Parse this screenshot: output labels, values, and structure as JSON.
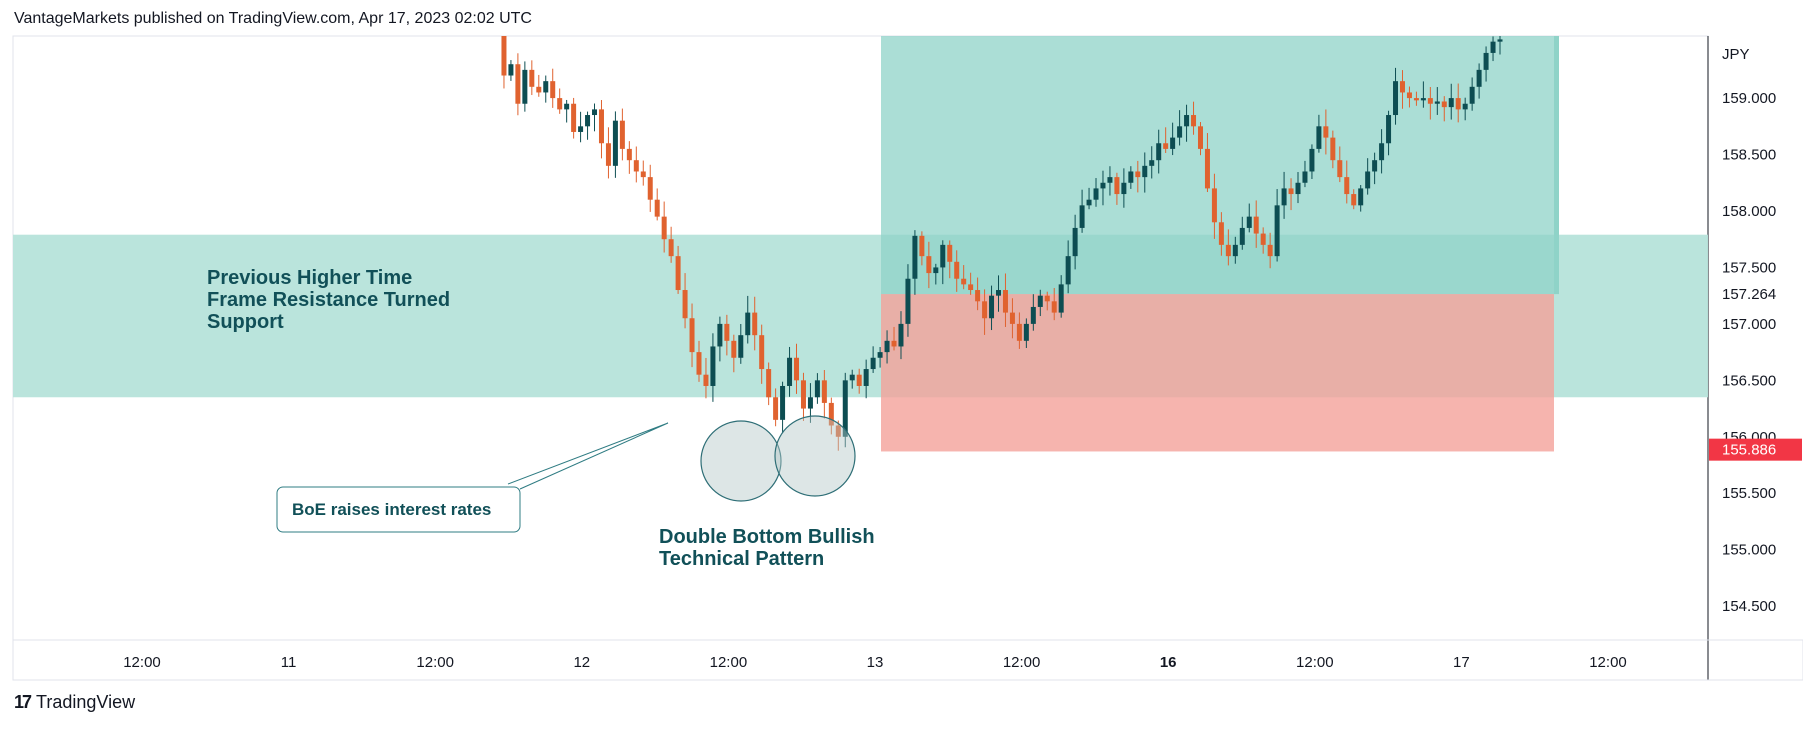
{
  "header": {
    "published": "VantageMarkets published on TradingView.com, Apr 17, 2023 02:02 UTC"
  },
  "footer": {
    "brand": "TradingView"
  },
  "annotations": {
    "zone_label_lines": [
      "Previous Higher Time",
      "Frame Resistance Turned",
      "Support"
    ],
    "callout": "BoE raises interest rates",
    "pattern_lines": [
      "Double Bottom Bullish",
      "Technical Pattern"
    ]
  },
  "colors": {
    "bull": "#0d4d52",
    "bear": "#e0622f",
    "zone": "#b6e3da",
    "profit": "#8fd3c8",
    "loss": "#f4a19a",
    "label_text": "#115058",
    "price_badge": "#f23645"
  },
  "chart_data": {
    "type": "candlestick",
    "currency": "JPY",
    "ylim": [
      154.2,
      159.55
    ],
    "y_ticks": [
      "159.000",
      "158.500",
      "158.000",
      "157.500",
      "157.000",
      "156.500",
      "156.000",
      "155.500",
      "155.000",
      "154.500"
    ],
    "x_ticks": [
      {
        "label": "12:00",
        "bold": false
      },
      {
        "label": "11",
        "bold": false
      },
      {
        "label": "12:00",
        "bold": false
      },
      {
        "label": "12",
        "bold": false
      },
      {
        "label": "12:00",
        "bold": false
      },
      {
        "label": "13",
        "bold": false
      },
      {
        "label": "12:00",
        "bold": false
      },
      {
        "label": "16",
        "bold": true
      },
      {
        "label": "12:00",
        "bold": false
      },
      {
        "label": "17",
        "bold": false
      },
      {
        "label": "12:00",
        "bold": false
      }
    ],
    "price_labels": {
      "target": "157.264",
      "current": "155.886"
    },
    "support_zone": {
      "low": 156.35,
      "high": 157.79
    },
    "position": {
      "entry": 157.264,
      "take_profit": 159.55,
      "stop_loss": 155.87
    },
    "closes": [
      159.55,
      159.2,
      159.3,
      158.95,
      159.25,
      159.1,
      159.05,
      159.15,
      159.0,
      158.9,
      158.95,
      158.7,
      158.75,
      158.85,
      158.9,
      158.6,
      158.4,
      158.8,
      158.55,
      158.45,
      158.35,
      158.3,
      158.1,
      157.95,
      157.75,
      157.6,
      157.3,
      157.05,
      156.75,
      156.55,
      156.45,
      156.8,
      157.0,
      156.85,
      156.7,
      156.9,
      157.1,
      156.9,
      156.6,
      156.35,
      156.15,
      156.45,
      156.7,
      156.5,
      156.25,
      156.35,
      156.5,
      156.3,
      156.1,
      156.0,
      156.5,
      156.55,
      156.45,
      156.6,
      156.7,
      156.75,
      156.85,
      156.8,
      157.0,
      157.4,
      157.78,
      157.6,
      157.45,
      157.5,
      157.7,
      157.55,
      157.4,
      157.35,
      157.3,
      157.2,
      157.05,
      157.25,
      157.3,
      157.1,
      157.0,
      156.85,
      157.0,
      157.15,
      157.25,
      157.2,
      157.1,
      157.35,
      157.6,
      157.85,
      158.05,
      158.1,
      158.2,
      158.25,
      158.3,
      158.15,
      158.25,
      158.35,
      158.3,
      158.4,
      158.45,
      158.6,
      158.55,
      158.65,
      158.75,
      158.85,
      158.75,
      158.55,
      158.2,
      157.9,
      157.7,
      157.6,
      157.7,
      157.85,
      157.95,
      157.8,
      157.7,
      157.6,
      158.05,
      158.2,
      158.15,
      158.25,
      158.35,
      158.55,
      158.75,
      158.65,
      158.45,
      158.3,
      158.15,
      158.05,
      158.2,
      158.35,
      158.45,
      158.6,
      158.85,
      159.15,
      159.05,
      159.0,
      158.98,
      159.0,
      158.95,
      158.97,
      158.92,
      159.0,
      158.9,
      158.95,
      159.1,
      159.25,
      159.4,
      159.5,
      159.52
    ]
  }
}
